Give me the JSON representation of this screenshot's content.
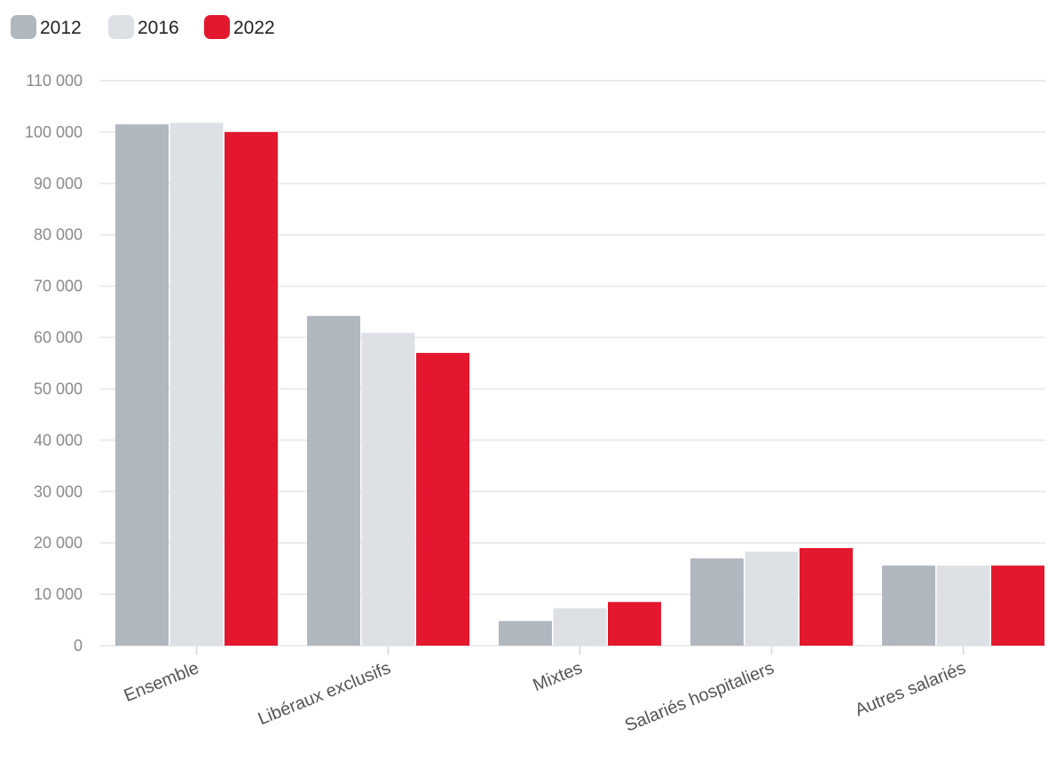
{
  "chart_data": {
    "type": "bar",
    "categories": [
      "Ensemble",
      "Libéraux exclusifs",
      "Mixtes",
      "Salariés hospitaliers",
      "Autres salariés"
    ],
    "series": [
      {
        "name": "2012",
        "color": "#b1b7bf",
        "values": [
          101500,
          64200,
          4800,
          17000,
          15600
        ]
      },
      {
        "name": "2016",
        "color": "#dde1e6",
        "values": [
          101800,
          60900,
          7300,
          18300,
          15600
        ]
      },
      {
        "name": "2022",
        "color": "#e3182f",
        "values": [
          100000,
          57000,
          8500,
          19000,
          15600
        ]
      }
    ],
    "y_ticks": [
      {
        "value": 0,
        "label": "0"
      },
      {
        "value": 10000,
        "label": "10 000"
      },
      {
        "value": 20000,
        "label": "20 000"
      },
      {
        "value": 30000,
        "label": "30 000"
      },
      {
        "value": 40000,
        "label": "40 000"
      },
      {
        "value": 50000,
        "label": "50 000"
      },
      {
        "value": 60000,
        "label": "60 000"
      },
      {
        "value": 70000,
        "label": "70 000"
      },
      {
        "value": 80000,
        "label": "80 000"
      },
      {
        "value": 90000,
        "label": "90 000"
      },
      {
        "value": 100000,
        "label": "100 000"
      },
      {
        "value": 110000,
        "label": "110 000"
      }
    ],
    "ylim": [
      0,
      110000
    ],
    "grid": true,
    "legend_position": "top-left",
    "xlabel": "",
    "ylabel": "",
    "title": ""
  },
  "colors": {
    "grid": "#ebebeb",
    "axis_text": "#8a8a8a",
    "category_text": "#555555",
    "legend_text": "#222222"
  }
}
